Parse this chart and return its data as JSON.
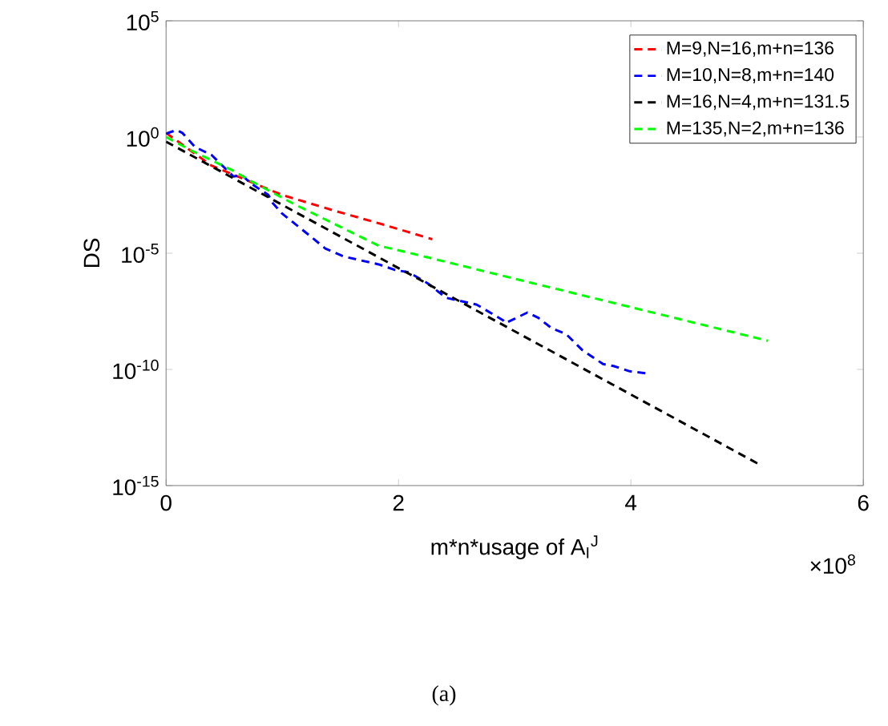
{
  "chart_data": {
    "type": "line",
    "xlabel": "m*n*usage of A$_{I}$$^{J}$",
    "ylabel": "DS",
    "log": "y",
    "grid": false,
    "legend": "top right",
    "marker": "none",
    "line_style": "dashed",
    "xlim": [
      0,
      6
    ],
    "ylim": [
      1e-15,
      100000
    ],
    "xticks": [
      0,
      2,
      4,
      6
    ],
    "yticks": [
      {
        "value": 1e-15,
        "label": "10$^{-15}$"
      },
      {
        "value": 1e-10,
        "label": "10$^{-10}$"
      },
      {
        "value": 1e-05,
        "label": "10$^{-5}$"
      },
      {
        "value": 1,
        "label": "10$^{0}$"
      },
      {
        "value": 100000,
        "label": "10$^{5}$"
      }
    ],
    "annotations": [
      "×10$^{8}$",
      "(a)"
    ],
    "series": [
      {
        "name": "M=9,N=16,m+n=136",
        "color": "#ff0000",
        "x": [
          0,
          0.39,
          1.0,
          1.46,
          1.87,
          2.29
        ],
        "values": [
          1.5,
          0.059,
          0.0032,
          0.00065,
          0.00017,
          4e-05
        ]
      },
      {
        "name": "M=10,N=8,m+n=140",
        "color": "#0000ff",
        "x": [
          0,
          0.09,
          0.14,
          0.25,
          0.39,
          0.58,
          0.65,
          0.74,
          0.88,
          0.92,
          1.0,
          1.23,
          1.37,
          1.53,
          1.83,
          1.97,
          2.09,
          2.25,
          2.41,
          2.67,
          2.71,
          2.9,
          2.92,
          3.11,
          3.2,
          3.32,
          3.44,
          3.58,
          3.76,
          3.85,
          3.99,
          4.16
        ],
        "values": [
          1.4,
          2,
          1.5,
          0.37,
          0.17,
          0.02,
          0.023,
          0.0093,
          0.0032,
          0.0014,
          0.0005,
          6e-05,
          1.6e-05,
          7.2e-06,
          3.3e-06,
          1.9e-06,
          1.5e-06,
          5.1e-07,
          1.2e-07,
          6.2e-08,
          4.8e-08,
          1.3e-08,
          9.8e-09,
          2.8e-08,
          1.7e-08,
          5.8e-09,
          3.4e-09,
          6.9e-10,
          1.7e-10,
          1.4e-10,
          8.3e-11,
          6.5e-11
        ]
      },
      {
        "name": "M=16,N=4,m+n=131.5",
        "color": "#000000",
        "x": [
          0,
          2.5,
          5.11
        ],
        "values": [
          0.63,
          1e-07,
          7.9e-15
        ]
      },
      {
        "name": "M=135,N=2,m+n=136",
        "color": "#00ff00",
        "x": [
          0,
          0.2,
          0.58,
          0.74,
          1.09,
          1.46,
          1.83,
          2.04,
          5.18
        ],
        "values": [
          1,
          0.29,
          0.035,
          0.012,
          0.0014,
          0.00017,
          2.1e-05,
          1.2e-05,
          1.7e-09
        ]
      }
    ]
  }
}
